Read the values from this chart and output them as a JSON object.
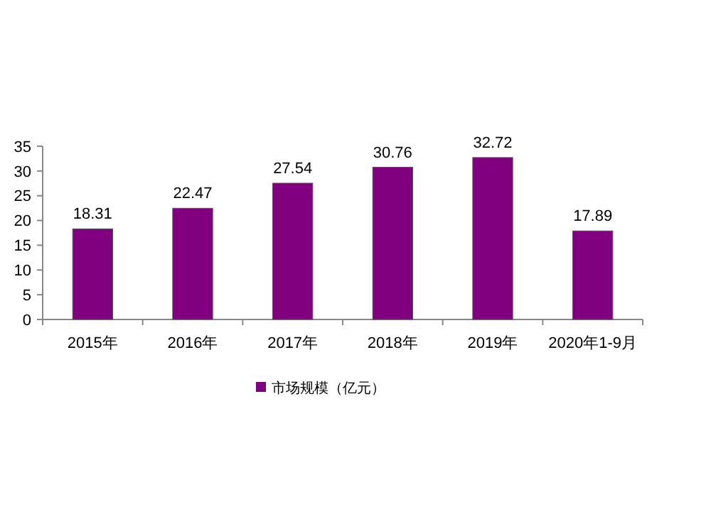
{
  "chart_data": {
    "type": "bar",
    "categories": [
      "2015年",
      "2016年",
      "2017年",
      "2018年",
      "2019年",
      "2020年1-9月"
    ],
    "series": [
      {
        "name": "市场规模（亿元）",
        "color": "#800080",
        "values": [
          18.31,
          22.47,
          27.54,
          30.76,
          32.72,
          17.89
        ]
      }
    ],
    "ylim": [
      0,
      35
    ],
    "yticks": [
      0,
      5,
      10,
      15,
      20,
      25,
      30,
      35
    ],
    "data_labels": true,
    "legend": "bottom",
    "grid": false
  }
}
